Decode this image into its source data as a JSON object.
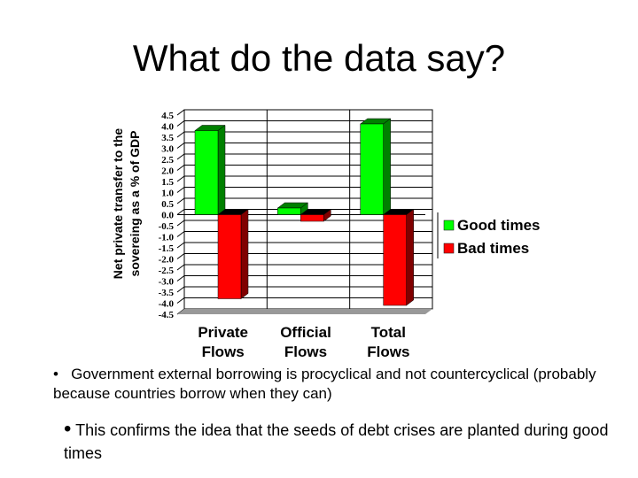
{
  "title": "What do the data say?",
  "chart_data": {
    "type": "bar",
    "style": "3d-clustered",
    "categories": [
      "Private Flows",
      "Official Flows",
      "Total Flows"
    ],
    "category_lines": [
      [
        "Private",
        "Flows"
      ],
      [
        "Official",
        "Flows"
      ],
      [
        "Total",
        "Flows"
      ]
    ],
    "series": [
      {
        "name": "Good times",
        "values": [
          3.8,
          0.3,
          4.1
        ],
        "color": "#00ff00",
        "side": "#008000"
      },
      {
        "name": "Bad times",
        "values": [
          -3.8,
          -0.3,
          -4.1
        ],
        "color": "#ff0000",
        "side": "#800000"
      }
    ],
    "ylabel_lines": [
      "Net private transfer to the",
      "sovereing as a % of GDP"
    ],
    "ylim": [
      -4.5,
      4.5
    ],
    "yticks": [
      "4.5",
      "4.0",
      "3.5",
      "3.0",
      "2.5",
      "2.0",
      "1.5",
      "1.0",
      "0.5",
      "0.0",
      "-0.5",
      "-1.0",
      "-1.5",
      "-2.0",
      "-2.5",
      "-3.0",
      "-3.5",
      "-4.0",
      "-4.5"
    ],
    "grid": true,
    "legend": "right"
  },
  "bullets": [
    "Government external borrowing is procyclical and not countercyclical (probably because countries borrow when they can)",
    "This confirms the idea that the seeds of debt crises are planted during good times"
  ],
  "bullet_marker": "•"
}
